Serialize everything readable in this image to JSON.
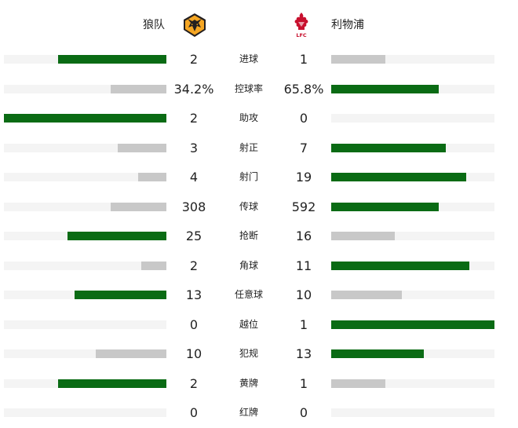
{
  "header": {
    "home_team": "狼队",
    "away_team": "利物浦",
    "home_logo_icon": "wolves-crest-icon",
    "away_logo_icon": "liverpool-crest-icon",
    "away_logo_text": "LFC"
  },
  "colors": {
    "leading_bar": "#0a6b14",
    "trailing_bar": "#c8c8c8",
    "track": "#f4f4f4"
  },
  "stats": [
    {
      "label": "进球",
      "home": "2",
      "away": "1",
      "home_share": 0.667,
      "away_share": 0.333
    },
    {
      "label": "控球率",
      "home": "34.2%",
      "away": "65.8%",
      "home_share": 0.342,
      "away_share": 0.658
    },
    {
      "label": "助攻",
      "home": "2",
      "away": "0",
      "home_share": 1.0,
      "away_share": 0.0
    },
    {
      "label": "射正",
      "home": "3",
      "away": "7",
      "home_share": 0.3,
      "away_share": 0.7
    },
    {
      "label": "射门",
      "home": "4",
      "away": "19",
      "home_share": 0.174,
      "away_share": 0.826
    },
    {
      "label": "传球",
      "home": "308",
      "away": "592",
      "home_share": 0.342,
      "away_share": 0.658
    },
    {
      "label": "抢断",
      "home": "25",
      "away": "16",
      "home_share": 0.61,
      "away_share": 0.39
    },
    {
      "label": "角球",
      "home": "2",
      "away": "11",
      "home_share": 0.154,
      "away_share": 0.846
    },
    {
      "label": "任意球",
      "home": "13",
      "away": "10",
      "home_share": 0.565,
      "away_share": 0.435
    },
    {
      "label": "越位",
      "home": "0",
      "away": "1",
      "home_share": 0.0,
      "away_share": 1.0
    },
    {
      "label": "犯规",
      "home": "10",
      "away": "13",
      "home_share": 0.435,
      "away_share": 0.565
    },
    {
      "label": "黄牌",
      "home": "2",
      "away": "1",
      "home_share": 0.667,
      "away_share": 0.333
    },
    {
      "label": "红牌",
      "home": "0",
      "away": "0",
      "home_share": 0.0,
      "away_share": 0.0
    }
  ]
}
